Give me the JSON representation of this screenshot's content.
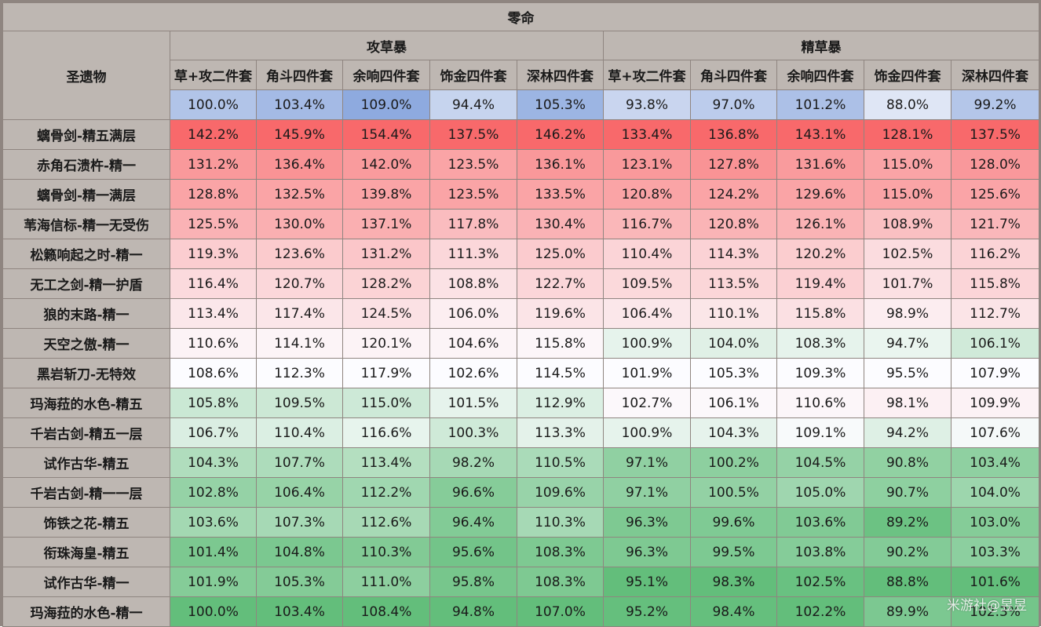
{
  "title": "零命",
  "row_header": "圣遗物",
  "groups": [
    "攻草暴",
    "精草暴"
  ],
  "columns": [
    "草+攻二件套",
    "角斗四件套",
    "余响四件套",
    "饰金四件套",
    "深林四件套",
    "草+攻二件套",
    "角斗四件套",
    "余响四件套",
    "饰金四件套",
    "深林四件套"
  ],
  "base": [
    "100.0%",
    "103.4%",
    "109.0%",
    "94.4%",
    "105.3%",
    "93.8%",
    "97.0%",
    "101.2%",
    "88.0%",
    "99.2%"
  ],
  "rows": [
    {
      "name": "螭骨剑-精五满层",
      "values": [
        "142.2%",
        "145.9%",
        "154.4%",
        "137.5%",
        "146.2%",
        "133.4%",
        "136.8%",
        "143.1%",
        "128.1%",
        "137.5%"
      ]
    },
    {
      "name": "赤角石溃杵-精一",
      "values": [
        "131.2%",
        "136.4%",
        "142.0%",
        "123.5%",
        "136.1%",
        "123.1%",
        "127.8%",
        "131.6%",
        "115.0%",
        "128.0%"
      ]
    },
    {
      "name": "螭骨剑-精一满层",
      "values": [
        "128.8%",
        "132.5%",
        "139.8%",
        "123.5%",
        "133.5%",
        "120.8%",
        "124.2%",
        "129.6%",
        "115.0%",
        "125.6%"
      ]
    },
    {
      "name": "苇海信标-精一无受伤",
      "values": [
        "125.5%",
        "130.0%",
        "137.1%",
        "117.8%",
        "130.4%",
        "116.7%",
        "120.8%",
        "126.1%",
        "108.9%",
        "121.7%"
      ]
    },
    {
      "name": "松籁响起之时-精一",
      "values": [
        "119.3%",
        "123.6%",
        "131.2%",
        "111.3%",
        "125.0%",
        "110.4%",
        "114.3%",
        "120.2%",
        "102.5%",
        "116.2%"
      ]
    },
    {
      "name": "无工之剑-精一护盾",
      "values": [
        "116.4%",
        "120.7%",
        "128.2%",
        "108.8%",
        "122.7%",
        "109.5%",
        "113.5%",
        "119.4%",
        "101.7%",
        "115.8%"
      ]
    },
    {
      "name": "狼的末路-精一",
      "values": [
        "113.4%",
        "117.4%",
        "124.5%",
        "106.0%",
        "119.6%",
        "106.4%",
        "110.1%",
        "115.8%",
        "98.9%",
        "112.7%"
      ]
    },
    {
      "name": "天空之傲-精一",
      "values": [
        "110.6%",
        "114.1%",
        "120.1%",
        "104.6%",
        "115.8%",
        "100.9%",
        "104.0%",
        "108.3%",
        "94.7%",
        "106.1%"
      ]
    },
    {
      "name": "黑岩斩刀-无特效",
      "values": [
        "108.6%",
        "112.3%",
        "117.9%",
        "102.6%",
        "114.5%",
        "101.9%",
        "105.3%",
        "109.3%",
        "95.5%",
        "107.9%"
      ]
    },
    {
      "name": "玛海菈的水色-精五",
      "values": [
        "105.8%",
        "109.5%",
        "115.0%",
        "101.5%",
        "112.9%",
        "102.7%",
        "106.1%",
        "110.6%",
        "98.1%",
        "109.9%"
      ]
    },
    {
      "name": "千岩古剑-精五一层",
      "values": [
        "106.7%",
        "110.4%",
        "116.6%",
        "100.3%",
        "113.3%",
        "100.9%",
        "104.3%",
        "109.1%",
        "94.2%",
        "107.6%"
      ]
    },
    {
      "name": "试作古华-精五",
      "values": [
        "104.3%",
        "107.7%",
        "113.4%",
        "98.2%",
        "110.5%",
        "97.1%",
        "100.2%",
        "104.5%",
        "90.8%",
        "103.4%"
      ]
    },
    {
      "name": "千岩古剑-精一一层",
      "values": [
        "102.8%",
        "106.4%",
        "112.2%",
        "96.6%",
        "109.6%",
        "97.1%",
        "100.5%",
        "105.0%",
        "90.7%",
        "104.0%"
      ]
    },
    {
      "name": "饰铁之花-精五",
      "values": [
        "103.6%",
        "107.3%",
        "112.6%",
        "96.4%",
        "110.3%",
        "96.3%",
        "99.6%",
        "103.6%",
        "89.2%",
        "103.0%"
      ]
    },
    {
      "name": "衔珠海皇-精五",
      "values": [
        "101.4%",
        "104.8%",
        "110.3%",
        "95.6%",
        "108.3%",
        "96.3%",
        "99.5%",
        "103.8%",
        "90.2%",
        "103.3%"
      ]
    },
    {
      "name": "试作古华-精一",
      "values": [
        "101.9%",
        "105.3%",
        "111.0%",
        "95.8%",
        "108.3%",
        "95.1%",
        "98.3%",
        "102.5%",
        "88.8%",
        "101.6%"
      ]
    },
    {
      "name": "玛海菈的水色-精一",
      "values": [
        "100.0%",
        "103.4%",
        "108.4%",
        "94.8%",
        "107.0%",
        "95.2%",
        "98.4%",
        "102.2%",
        "89.9%",
        "102.3%"
      ]
    }
  ],
  "watermark": "米游社@昱昱",
  "colors": {
    "header_bg": "#beb7b2",
    "border": "#8f8580",
    "base_low": "#dfe6f5",
    "base_high": "#8eaadf",
    "heat_high": "#f8696b",
    "heat_mid": "#fcfcff",
    "heat_low": "#63be7b"
  }
}
